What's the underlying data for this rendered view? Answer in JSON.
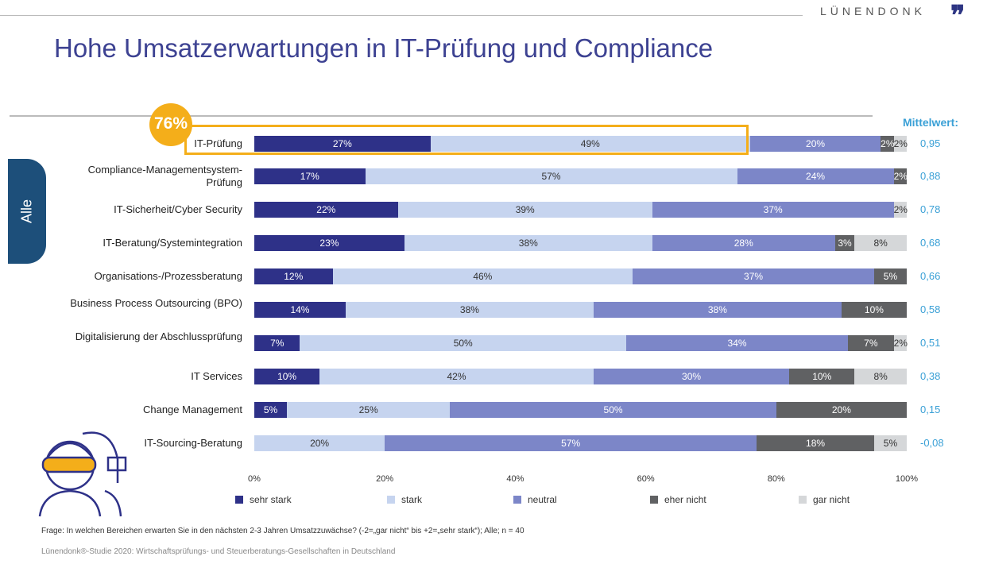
{
  "header": {
    "title": "Hohe Umsatzerwartungen in IT-Prüfung und Compliance",
    "brand": "LÜNENDONK",
    "side_tab": "Alle",
    "highlight": "76%"
  },
  "footer": {
    "question": "Frage: In welchen Bereichen erwarten Sie in den nächsten 2-3 Jahren Umsatzzuwächse? (-2=„gar nicht“ bis +2=„sehr stark“); Alle; n = 40",
    "source": "Lünendonk®-Studie 2020: Wirtschaftsprüfungs- und Steuerberatungs-Gesellschaften in Deutschland"
  },
  "chart_data": {
    "type": "bar",
    "orientation": "horizontal",
    "stacked": true,
    "mean_label": "Mittelwert:",
    "categories": [
      "IT-Prüfung",
      "Compliance-Managementsystem-Prüfung",
      "IT-Sicherheit/Cyber Security",
      "IT-Beratung/Systemintegration",
      "Organisations-/Prozessberatung",
      "Business Process Outsourcing (BPO)",
      "Digitalisierung der Abschlussprüfung",
      "IT Services",
      "Change Management",
      "IT-Sourcing-Beratung"
    ],
    "series": [
      {
        "name": "sehr stark",
        "color": "#2e3188",
        "text": "#fff",
        "values": [
          27,
          17,
          22,
          23,
          12,
          14,
          7,
          10,
          5,
          0
        ]
      },
      {
        "name": "stark",
        "color": "#c6d4ef",
        "text": "#333",
        "values": [
          49,
          57,
          39,
          38,
          46,
          38,
          50,
          42,
          25,
          20
        ]
      },
      {
        "name": "neutral",
        "color": "#7c86c8",
        "text": "#fff",
        "values": [
          20,
          24,
          37,
          28,
          37,
          38,
          34,
          30,
          50,
          57
        ]
      },
      {
        "name": "eher nicht",
        "color": "#606163",
        "text": "#fff",
        "values": [
          2,
          2,
          0,
          3,
          5,
          10,
          7,
          10,
          20,
          18
        ]
      },
      {
        "name": "gar nicht",
        "color": "#d5d7d9",
        "text": "#333",
        "values": [
          2,
          0,
          2,
          8,
          0,
          0,
          2,
          8,
          0,
          5
        ]
      }
    ],
    "means": [
      "0,95",
      "0,88",
      "0,78",
      "0,68",
      "0,66",
      "0,58",
      "0,51",
      "0,38",
      "0,15",
      "-0,08"
    ],
    "xticks": [
      "0%",
      "20%",
      "40%",
      "60%",
      "80%",
      "100%"
    ],
    "xlim": [
      0,
      100
    ],
    "legend": "bottom"
  }
}
